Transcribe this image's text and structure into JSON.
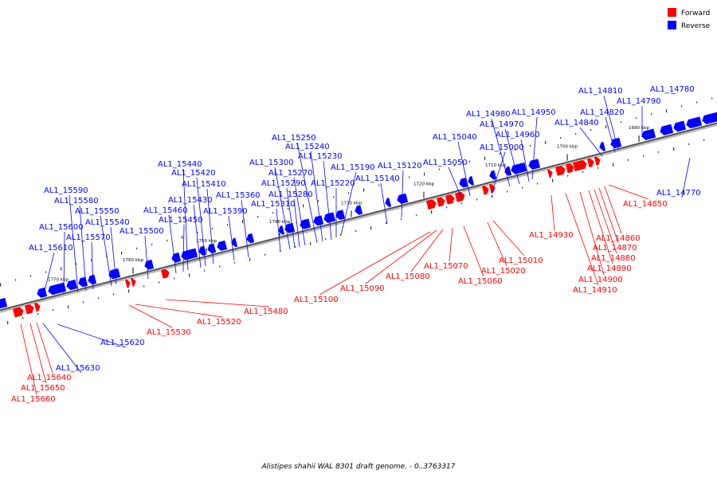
{
  "legend": {
    "forward_label": "Forward",
    "reverse_label": "Reverse",
    "forward_color": "#ff0000",
    "reverse_color": "#0000ff"
  },
  "caption": "Alistipes shahii WAL 8301 draft genome. - 0..3763317",
  "kbp_ticks": [
    "1690 kbp",
    "1700 kbp",
    "1710 kbp",
    "1720 kbp",
    "1730 kbp",
    "1740 kbp",
    "1750 kbp",
    "1760 kbp",
    "1770 kbp"
  ],
  "genes": [
    {
      "name": "AL1_14780",
      "strand": "reverse"
    },
    {
      "name": "AL1_14790",
      "strand": "reverse"
    },
    {
      "name": "AL1_14810",
      "strand": "reverse"
    },
    {
      "name": "AL1_14820",
      "strand": "reverse"
    },
    {
      "name": "AL1_14840",
      "strand": "reverse"
    },
    {
      "name": "AL1_14950",
      "strand": "reverse"
    },
    {
      "name": "AL1_14960",
      "strand": "reverse"
    },
    {
      "name": "AL1_14970",
      "strand": "reverse"
    },
    {
      "name": "AL1_14980",
      "strand": "reverse"
    },
    {
      "name": "AL1_15000",
      "strand": "reverse"
    },
    {
      "name": "AL1_15040",
      "strand": "reverse"
    },
    {
      "name": "AL1_15050",
      "strand": "reverse"
    },
    {
      "name": "AL1_15120",
      "strand": "reverse"
    },
    {
      "name": "AL1_15140",
      "strand": "reverse"
    },
    {
      "name": "AL1_15190",
      "strand": "reverse"
    },
    {
      "name": "AL1_15220",
      "strand": "reverse"
    },
    {
      "name": "AL1_15230",
      "strand": "reverse"
    },
    {
      "name": "AL1_15240",
      "strand": "reverse"
    },
    {
      "name": "AL1_15250",
      "strand": "reverse"
    },
    {
      "name": "AL1_15270",
      "strand": "reverse"
    },
    {
      "name": "AL1_15280",
      "strand": "reverse"
    },
    {
      "name": "AL1_15290",
      "strand": "reverse"
    },
    {
      "name": "AL1_15300",
      "strand": "reverse"
    },
    {
      "name": "AL1_15310",
      "strand": "reverse"
    },
    {
      "name": "AL1_15360",
      "strand": "reverse"
    },
    {
      "name": "AL1_15390",
      "strand": "reverse"
    },
    {
      "name": "AL1_15410",
      "strand": "reverse"
    },
    {
      "name": "AL1_15420",
      "strand": "reverse"
    },
    {
      "name": "AL1_15430",
      "strand": "reverse"
    },
    {
      "name": "AL1_15440",
      "strand": "reverse"
    },
    {
      "name": "AL1_15450",
      "strand": "reverse"
    },
    {
      "name": "AL1_15460",
      "strand": "reverse"
    },
    {
      "name": "AL1_15500",
      "strand": "reverse"
    },
    {
      "name": "AL1_15540",
      "strand": "reverse"
    },
    {
      "name": "AL1_15550",
      "strand": "reverse"
    },
    {
      "name": "AL1_15570",
      "strand": "reverse"
    },
    {
      "name": "AL1_15580",
      "strand": "reverse"
    },
    {
      "name": "AL1_15590",
      "strand": "reverse"
    },
    {
      "name": "AL1_15600",
      "strand": "reverse"
    },
    {
      "name": "AL1_15610",
      "strand": "reverse"
    },
    {
      "name": "AL1_14770",
      "strand": "reverse"
    },
    {
      "name": "AL1_15620",
      "strand": "reverse"
    },
    {
      "name": "AL1_15630",
      "strand": "reverse"
    },
    {
      "name": "AL1_14850",
      "strand": "forward"
    },
    {
      "name": "AL1_14860",
      "strand": "forward"
    },
    {
      "name": "AL1_14870",
      "strand": "forward"
    },
    {
      "name": "AL1_14880",
      "strand": "forward"
    },
    {
      "name": "AL1_14890",
      "strand": "forward"
    },
    {
      "name": "AL1_14900",
      "strand": "forward"
    },
    {
      "name": "AL1_14910",
      "strand": "forward"
    },
    {
      "name": "AL1_14930",
      "strand": "forward"
    },
    {
      "name": "AL1_15010",
      "strand": "forward"
    },
    {
      "name": "AL1_15020",
      "strand": "forward"
    },
    {
      "name": "AL1_15060",
      "strand": "forward"
    },
    {
      "name": "AL1_15070",
      "strand": "forward"
    },
    {
      "name": "AL1_15080",
      "strand": "forward"
    },
    {
      "name": "AL1_15090",
      "strand": "forward"
    },
    {
      "name": "AL1_15100",
      "strand": "forward"
    },
    {
      "name": "AL1_15480",
      "strand": "forward"
    },
    {
      "name": "AL1_15520",
      "strand": "forward"
    },
    {
      "name": "AL1_15530",
      "strand": "forward"
    },
    {
      "name": "AL1_15640",
      "strand": "forward"
    },
    {
      "name": "AL1_15650",
      "strand": "forward"
    },
    {
      "name": "AL1_15660",
      "strand": "forward"
    }
  ]
}
